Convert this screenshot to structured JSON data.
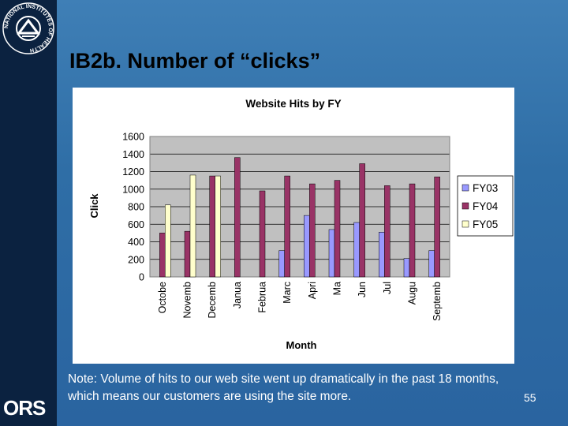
{
  "slide": {
    "logo_name": "national-institutes-of-health-seal",
    "logo_text": "NATIONAL INSTITUTES OF HEALTH",
    "ors_logo": "ORS",
    "title": "IB2b. Number of “clicks”",
    "note": "Note: Volume of hits to our web site went up dramatically in the past 18 months, which means our customers are using the site more.",
    "page_number": "55"
  },
  "colors": {
    "background": "#2f6ea6",
    "sidebar": "#0b2240",
    "plot_area": "#c0c0c0",
    "FY03": "#9999ff",
    "FY04": "#993366",
    "FY05": "#ffffcc"
  },
  "chart_data": {
    "type": "bar",
    "title": "Website Hits by FY",
    "xlabel": "Month",
    "ylabel": "Click",
    "ylim": [
      0,
      1600
    ],
    "yticks": [
      0,
      200,
      400,
      600,
      800,
      1000,
      1200,
      1400,
      1600
    ],
    "grid": true,
    "legend": "right",
    "categories": [
      "Octobe",
      "Novemb",
      "Decemb",
      "Janua",
      "Februa",
      "Marc",
      "Apri",
      "Ma",
      "Jun",
      "Jul",
      "Augu",
      "Septemb"
    ],
    "series": [
      {
        "name": "FY03",
        "values": [
          null,
          null,
          null,
          null,
          null,
          300,
          700,
          540,
          620,
          510,
          210,
          300
        ]
      },
      {
        "name": "FY04",
        "values": [
          500,
          520,
          1150,
          1360,
          980,
          1150,
          1060,
          1100,
          1290,
          1040,
          1060,
          1140
        ]
      },
      {
        "name": "FY05",
        "values": [
          820,
          1160,
          1150,
          null,
          null,
          null,
          null,
          null,
          null,
          null,
          null,
          null
        ]
      }
    ]
  }
}
